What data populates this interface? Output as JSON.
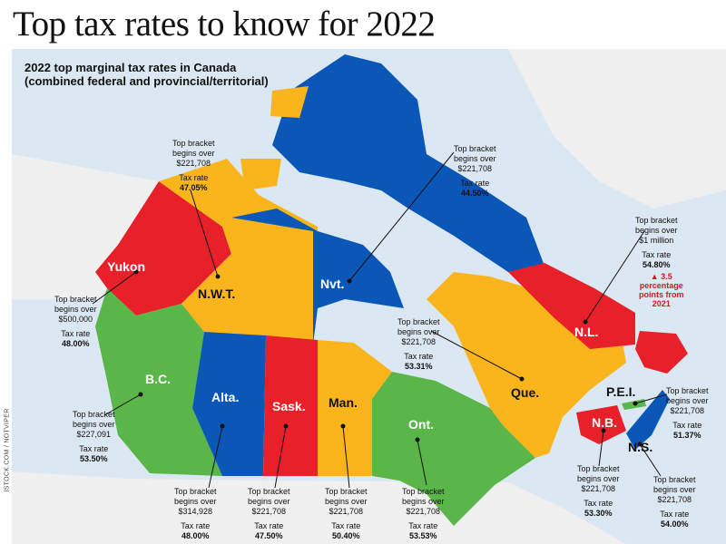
{
  "headline": "Top tax rates to know for 2022",
  "subtitle": {
    "line1": "2022 top marginal tax rates in Canada",
    "line2": "(combined federal and provincial/territorial)"
  },
  "credit": "ISTOCK.COM / NOTVIPER",
  "colors": {
    "red": "#e8202a",
    "blue": "#0a57b8",
    "yellow": "#fbb51c",
    "green": "#5ab648",
    "water": "#dbe7f2",
    "land_outside": "#f2f2f2"
  },
  "provinces": {
    "yukon": {
      "label": "Yukon",
      "color": "red",
      "bracket_line1": "Top bracket",
      "bracket_line2": "begins over",
      "threshold": "$500,000",
      "rate_label": "Tax rate",
      "rate": "48.00%"
    },
    "nwt": {
      "label": "N.W.T.",
      "color": "yellow",
      "bracket_line1": "Top bracket",
      "bracket_line2": "begins over",
      "threshold": "$221,708",
      "rate_label": "Tax rate",
      "rate": "47.05%"
    },
    "nvt": {
      "label": "Nvt.",
      "color": "blue",
      "bracket_line1": "Top bracket",
      "bracket_line2": "begins over",
      "threshold": "$221,708",
      "rate_label": "Tax rate",
      "rate": "44.50%"
    },
    "bc": {
      "label": "B.C.",
      "color": "green",
      "bracket_line1": "Top bracket",
      "bracket_line2": "begins over",
      "threshold": "$227,091",
      "rate_label": "Tax rate",
      "rate": "53.50%"
    },
    "alta": {
      "label": "Alta.",
      "color": "blue",
      "bracket_line1": "Top bracket",
      "bracket_line2": "begins over",
      "threshold": "$314,928",
      "rate_label": "Tax rate",
      "rate": "48.00%"
    },
    "sask": {
      "label": "Sask.",
      "color": "red",
      "bracket_line1": "Top bracket",
      "bracket_line2": "begins over",
      "threshold": "$221,708",
      "rate_label": "Tax rate",
      "rate": "47.50%"
    },
    "man": {
      "label": "Man.",
      "color": "yellow",
      "bracket_line1": "Top bracket",
      "bracket_line2": "begins over",
      "threshold": "$221,708",
      "rate_label": "Tax rate",
      "rate": "50.40%"
    },
    "ont": {
      "label": "Ont.",
      "color": "green",
      "bracket_line1": "Top bracket",
      "bracket_line2": "begins over",
      "threshold": "$221,708",
      "rate_label": "Tax rate",
      "rate": "53.53%"
    },
    "que": {
      "label": "Que.",
      "color": "yellow",
      "bracket_line1": "Top bracket",
      "bracket_line2": "begins over",
      "threshold": "$221,708",
      "rate_label": "Tax rate",
      "rate": "53.31%"
    },
    "nl": {
      "label": "N.L.",
      "color": "red",
      "bracket_line1": "Top bracket",
      "bracket_line2": "begins over",
      "threshold": "$1 million",
      "rate_label": "Tax rate",
      "rate": "54.80%",
      "note_line1": "3.5",
      "note_line2": "percentage",
      "note_line3": "points from",
      "note_line4": "2021"
    },
    "nb": {
      "label": "N.B.",
      "color": "red",
      "bracket_line1": "Top bracket",
      "bracket_line2": "begins over",
      "threshold": "$221,708",
      "rate_label": "Tax rate",
      "rate": "53.30%"
    },
    "pei": {
      "label": "P.E.I.",
      "color": "green",
      "bracket_line1": "Top bracket",
      "bracket_line2": "begins over",
      "threshold": "$221,708",
      "rate_label": "Tax rate",
      "rate": "51.37%"
    },
    "ns": {
      "label": "N.S.",
      "color": "blue",
      "bracket_line1": "Top bracket",
      "bracket_line2": "begins over",
      "threshold": "$221,708",
      "rate_label": "Tax rate",
      "rate": "54.00%"
    }
  }
}
